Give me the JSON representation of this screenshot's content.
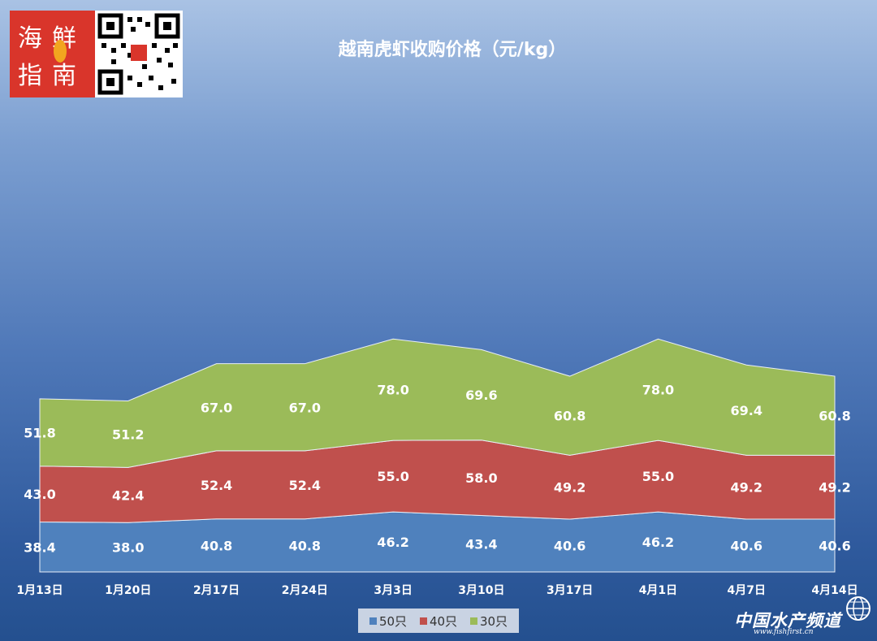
{
  "chart_data": {
    "type": "area",
    "stacked": true,
    "title": "越南虎虾收购价格（元/kg）",
    "categories": [
      "1月13日",
      "1月20日",
      "2月17日",
      "2月24日",
      "3月3日",
      "3月10日",
      "3月17日",
      "4月1日",
      "4月7日",
      "4月14日"
    ],
    "series": [
      {
        "name": "50只",
        "color": "#4f81bd",
        "values": [
          38.4,
          38.0,
          40.8,
          40.8,
          46.2,
          43.4,
          40.6,
          46.2,
          40.6,
          40.6
        ]
      },
      {
        "name": "40只",
        "color": "#c0504d",
        "values": [
          43.0,
          42.4,
          52.4,
          52.4,
          55.0,
          58.0,
          49.2,
          55.0,
          49.2,
          49.2
        ]
      },
      {
        "name": "30只",
        "color": "#9bbb59",
        "values": [
          51.8,
          51.2,
          67.0,
          67.0,
          78.0,
          69.6,
          60.8,
          78.0,
          69.4,
          60.8
        ]
      }
    ],
    "labels": {
      "s0": [
        "38.4",
        "38.0",
        "40.8",
        "40.8",
        "46.2",
        "43.4",
        "40.6",
        "46.2",
        "40.6",
        "40.6"
      ],
      "s1": [
        "43.0",
        "42.4",
        "52.4",
        "52.4",
        "55.0",
        "58.0",
        "49.2",
        "55.0",
        "49.2",
        "49.2"
      ],
      "s2": [
        "51.8",
        "51.2",
        "67.0",
        "67.0",
        "78.0",
        "69.6",
        "60.8",
        "78.0",
        "69.4",
        "60.8"
      ]
    },
    "legend_position": "bottom",
    "grid": false
  },
  "branding": {
    "logo_text": "海鲜指南",
    "qr_icon": "qr-code-icon",
    "watermark": "中国水产频道",
    "watermark_url": "www.fishfirst.cn",
    "globe_icon": "globe-icon"
  }
}
